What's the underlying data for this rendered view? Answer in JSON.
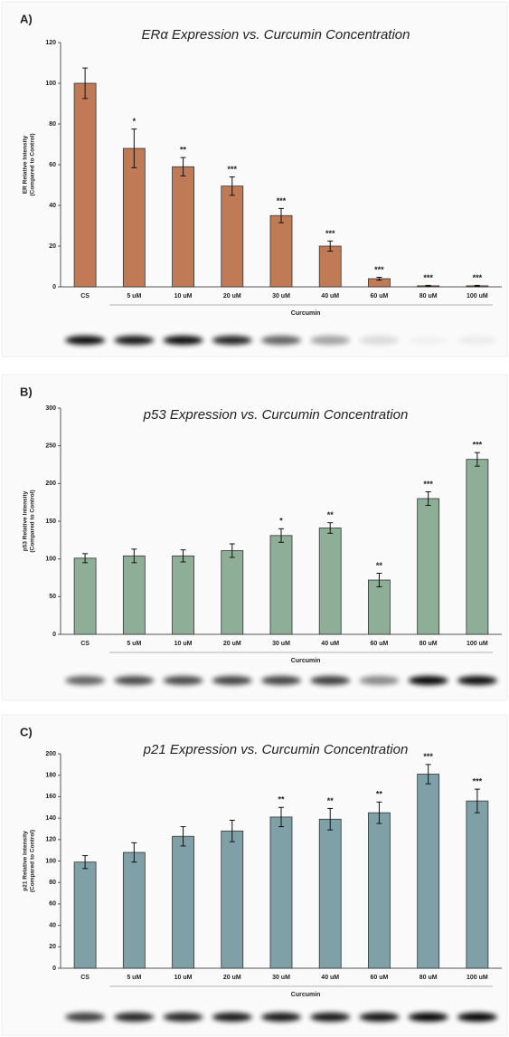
{
  "chart_data": [
    {
      "type": "bar",
      "panel": "A)",
      "title": "ERα Expression vs. Curcumin Concentration",
      "y_label": [
        "ER Relative Intensity",
        "(Compared to Control)"
      ],
      "x_label": "Curcumin",
      "categories": [
        "CS",
        "5 uM",
        "10 uM",
        "20 uM",
        "30 uM",
        "40 uM",
        "60 uM",
        "80 uM",
        "100 uM"
      ],
      "values": [
        100,
        68,
        59,
        49.5,
        35,
        20,
        4,
        0.5,
        0.5
      ],
      "errors": [
        7.5,
        9.5,
        4.5,
        4.5,
        3.5,
        2.5,
        0.7,
        0.2,
        0.2
      ],
      "annotations": [
        null,
        "*",
        "**",
        "***",
        "***",
        "***",
        "***",
        "***",
        "***"
      ],
      "color": "#c07b56",
      "ylim": [
        0,
        120
      ],
      "yticks": [
        0,
        20,
        40,
        60,
        80,
        100,
        120
      ]
    },
    {
      "type": "bar",
      "panel": "B)",
      "title": "p53 Expression vs. Curcumin Concentration",
      "y_label": [
        "p53 Relative Intensity",
        "(Compared to Control)"
      ],
      "x_label": "Curcumin",
      "categories": [
        "CS",
        "5 uM",
        "10 uM",
        "20 uM",
        "30 uM",
        "40 uM",
        "60 uM",
        "80 uM",
        "100 uM"
      ],
      "values": [
        101,
        104,
        104,
        111,
        131,
        141,
        72,
        180,
        232
      ],
      "errors": [
        6,
        9,
        8,
        9,
        9,
        7,
        9,
        9,
        9
      ],
      "annotations": [
        null,
        null,
        null,
        null,
        "*",
        "**",
        "**",
        "***",
        "***"
      ],
      "color": "#8fae98",
      "ylim": [
        0,
        300
      ],
      "yticks": [
        0,
        50,
        100,
        150,
        200,
        250,
        300
      ]
    },
    {
      "type": "bar",
      "panel": "C)",
      "title": "p21 Expression vs. Curcumin Concentration",
      "y_label": [
        "p21 Relative Intensity",
        "(Compared to Control)"
      ],
      "x_label": "Curcumin",
      "categories": [
        "CS",
        "5 uM",
        "10 uM",
        "20 uM",
        "30 uM",
        "40 uM",
        "60 uM",
        "80 uM",
        "100 uM"
      ],
      "values": [
        99,
        108,
        123,
        128,
        141,
        139,
        145,
        181,
        156
      ],
      "errors": [
        6,
        9,
        9,
        10,
        9,
        10,
        10,
        9,
        11
      ],
      "annotations": [
        null,
        null,
        null,
        null,
        "**",
        "**",
        "**",
        "***",
        "***"
      ],
      "color": "#7fa0a6",
      "ylim": [
        0,
        200
      ],
      "yticks": [
        0,
        20,
        40,
        60,
        80,
        100,
        120,
        140,
        160,
        180,
        200
      ]
    }
  ]
}
